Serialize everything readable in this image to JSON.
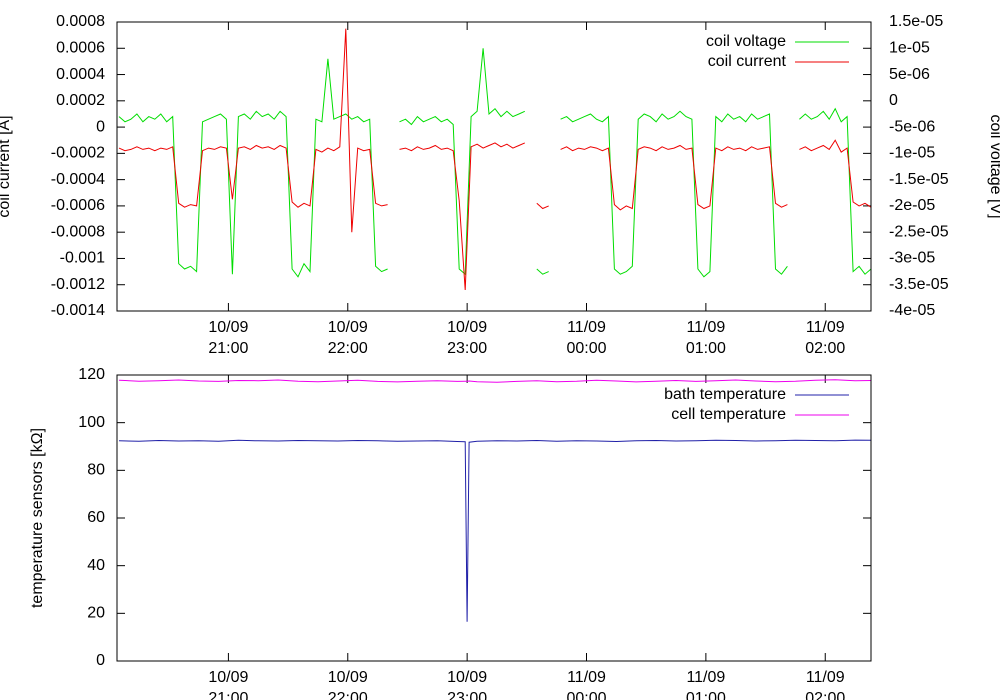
{
  "chart_data": [
    {
      "type": "line",
      "y_label": "coil current [A]",
      "y2_label": "coil voltage [V]",
      "legend": "upper right",
      "x": [
        "10/09 20:05",
        "10/09 20:08",
        "10/09 20:11",
        "10/09 20:14",
        "10/09 20:17",
        "10/09 20:20",
        "10/09 20:23",
        "10/09 20:26",
        "10/09 20:29",
        "10/09 20:32",
        "10/09 20:35",
        "10/09 20:38",
        "10/09 20:41",
        "10/09 20:44",
        "10/09 20:47",
        "10/09 20:50",
        "10/09 20:53",
        "10/09 20:56",
        "10/09 20:59",
        "10/09 21:02",
        "10/09 21:05",
        "10/09 21:08",
        "10/09 21:11",
        "10/09 21:14",
        "10/09 21:17",
        "10/09 21:20",
        "10/09 21:23",
        "10/09 21:26",
        "10/09 21:29",
        "10/09 21:32",
        "10/09 21:35",
        "10/09 21:38",
        "10/09 21:41",
        "10/09 21:44",
        "10/09 21:47",
        "10/09 21:50",
        "10/09 21:53",
        "10/09 21:56",
        "10/09 21:59",
        "10/09 22:02",
        "10/09 22:05",
        "10/09 22:08",
        "10/09 22:11",
        "10/09 22:14",
        "10/09 22:17",
        "10/09 22:20",
        "10/09 22:23",
        "10/09 22:26",
        "10/09 22:29",
        "10/09 22:32",
        "10/09 22:35",
        "10/09 22:38",
        "10/09 22:41",
        "10/09 22:44",
        "10/09 22:47",
        "10/09 22:50",
        "10/09 22:53",
        "10/09 22:56",
        "10/09 22:59",
        "10/09 23:02",
        "10/09 23:05",
        "10/09 23:08",
        "10/09 23:11",
        "10/09 23:14",
        "10/09 23:17",
        "10/09 23:20",
        "10/09 23:23",
        "10/09 23:26",
        "10/09 23:29",
        "10/09 23:32",
        "10/09 23:35",
        "10/09 23:38",
        "10/09 23:41",
        "10/09 23:44",
        "10/09 23:47",
        "10/09 23:50",
        "10/09 23:53",
        "10/09 23:56",
        "10/09 23:59",
        "11/09 00:02",
        "11/09 00:05",
        "11/09 00:08",
        "11/09 00:11",
        "11/09 00:14",
        "11/09 00:17",
        "11/09 00:20",
        "11/09 00:23",
        "11/09 00:26",
        "11/09 00:29",
        "11/09 00:32",
        "11/09 00:35",
        "11/09 00:38",
        "11/09 00:41",
        "11/09 00:44",
        "11/09 00:47",
        "11/09 00:50",
        "11/09 00:53",
        "11/09 00:56",
        "11/09 00:59",
        "11/09 01:02",
        "11/09 01:05",
        "11/09 01:08",
        "11/09 01:11",
        "11/09 01:14",
        "11/09 01:17",
        "11/09 01:20",
        "11/09 01:23",
        "11/09 01:26",
        "11/09 01:29",
        "11/09 01:32",
        "11/09 01:35",
        "11/09 01:38",
        "11/09 01:41",
        "11/09 01:44",
        "11/09 01:47",
        "11/09 01:50",
        "11/09 01:53",
        "11/09 01:56",
        "11/09 01:59",
        "11/09 02:02",
        "11/09 02:05",
        "11/09 02:08",
        "11/09 02:11",
        "11/09 02:14",
        "11/09 02:17",
        "11/09 02:20",
        "11/09 02:23"
      ],
      "xlim": [
        "10/09 20:04",
        "11/09 02:23"
      ],
      "xticks": [
        {
          "value": "10/09 21:00",
          "label": [
            "10/09",
            "21:00"
          ]
        },
        {
          "value": "10/09 22:00",
          "label": [
            "10/09",
            "22:00"
          ]
        },
        {
          "value": "10/09 23:00",
          "label": [
            "10/09",
            "23:00"
          ]
        },
        {
          "value": "11/09 00:00",
          "label": [
            "11/09",
            "00:00"
          ]
        },
        {
          "value": "11/09 01:00",
          "label": [
            "11/09",
            "01:00"
          ]
        },
        {
          "value": "11/09 02:00",
          "label": [
            "11/09",
            "02:00"
          ]
        }
      ],
      "ylim": [
        -0.0014,
        0.0008
      ],
      "yticks": [
        -0.0014,
        -0.0012,
        -0.001,
        -0.0008,
        -0.0006,
        -0.0004,
        -0.0002,
        0,
        0.0002,
        0.0004,
        0.0006,
        0.0008
      ],
      "y2lim": [
        -4e-05,
        1.5e-05
      ],
      "y2ticks": [
        {
          "value": -4e-05,
          "label": "-4e-05"
        },
        {
          "value": -3.5e-05,
          "label": "-3.5e-05"
        },
        {
          "value": -3e-05,
          "label": "-3e-05"
        },
        {
          "value": -2.5e-05,
          "label": "-2.5e-05"
        },
        {
          "value": -2e-05,
          "label": "-2e-05"
        },
        {
          "value": -1.5e-05,
          "label": "-1.5e-05"
        },
        {
          "value": -1e-05,
          "label": "-1e-05"
        },
        {
          "value": -5e-06,
          "label": "-5e-06"
        },
        0,
        {
          "value": 5e-06,
          "label": "5e-06"
        },
        {
          "value": 1e-05,
          "label": "1e-05"
        },
        {
          "value": 1.5e-05,
          "label": "1.5e-05"
        }
      ],
      "series": [
        {
          "name": "coil voltage",
          "color": "#00dd00",
          "axis": "y2",
          "values": [
            -3e-06,
            -4e-06,
            -3.5e-06,
            -2.5e-06,
            -4e-06,
            -3e-06,
            -3.5e-06,
            -2.5e-06,
            -4e-06,
            -3e-06,
            -3.1e-05,
            -3.2e-05,
            -3.15e-05,
            -3.25e-05,
            -4e-06,
            -3.5e-06,
            -3e-06,
            -2.5e-06,
            -3.5e-06,
            -3.3e-05,
            -3e-06,
            -2.5e-06,
            -3.5e-06,
            -2e-06,
            -3e-06,
            -2.5e-06,
            -3.5e-06,
            -2e-06,
            -3e-06,
            -3.2e-05,
            -3.35e-05,
            -3.1e-05,
            -3.25e-05,
            -3.5e-06,
            -4e-06,
            8e-06,
            -3.5e-06,
            -3e-06,
            -2.5e-06,
            -3.5e-06,
            -3e-06,
            -4e-06,
            -3.5e-06,
            -3.15e-05,
            -3.25e-05,
            -3.2e-05,
            null,
            -4e-06,
            -3.5e-06,
            -4.5e-06,
            -3e-06,
            -4e-06,
            -3.5e-06,
            -3e-06,
            -4e-06,
            -3.5e-06,
            -4.5e-06,
            -3.2e-05,
            -3.3e-05,
            -3e-06,
            -2e-06,
            1e-05,
            -2.5e-06,
            -1.5e-06,
            -3e-06,
            -2e-06,
            -3e-06,
            -2.5e-06,
            -2e-06,
            null,
            -3.2e-05,
            -3.3e-05,
            -3.25e-05,
            null,
            -3.5e-06,
            -3e-06,
            -4e-06,
            -3.5e-06,
            -3e-06,
            -2.5e-06,
            -3.5e-06,
            -4e-06,
            -3e-06,
            -3.2e-05,
            -3.3e-05,
            -3.25e-05,
            -3.15e-05,
            -3.5e-06,
            -2.5e-06,
            -3e-06,
            -4e-06,
            -2.5e-06,
            -3.5e-06,
            -3e-06,
            -2e-06,
            -3e-06,
            -3.5e-06,
            -3.2e-05,
            -3.35e-05,
            -3.25e-05,
            -3e-06,
            -4e-06,
            -2.5e-06,
            -3.5e-06,
            -3e-06,
            -4e-06,
            -2.5e-06,
            -3.5e-06,
            -3e-06,
            -2.5e-06,
            -3.2e-05,
            -3.3e-05,
            -3.15e-05,
            null,
            -3.5e-06,
            -2.5e-06,
            -3.5e-06,
            -3e-06,
            -2e-06,
            -3.5e-06,
            -1.5e-06,
            -4e-06,
            -3e-06,
            -3.25e-05,
            -3.15e-05,
            -3.3e-05,
            -3.2e-05
          ]
        },
        {
          "name": "coil current",
          "color": "#ee0000",
          "values": [
            -0.00016,
            -0.00018,
            -0.00017,
            -0.00015,
            -0.00017,
            -0.00016,
            -0.00018,
            -0.00016,
            -0.00017,
            -0.00015,
            -0.00058,
            -0.00061,
            -0.00059,
            -0.0006,
            -0.00018,
            -0.00016,
            -0.00017,
            -0.00015,
            -0.00016,
            -0.00055,
            -0.00016,
            -0.00015,
            -0.00017,
            -0.00014,
            -0.00016,
            -0.00015,
            -0.00017,
            -0.00014,
            -0.00016,
            -0.00057,
            -0.00061,
            -0.00058,
            -0.0006,
            -0.00017,
            -0.00019,
            -0.00016,
            -0.00018,
            -0.00015,
            0.00075,
            -0.0008,
            -0.00016,
            -0.00018,
            -0.00017,
            -0.00058,
            -0.0006,
            -0.00059,
            null,
            -0.00017,
            -0.00016,
            -0.00018,
            -0.00015,
            -0.00017,
            -0.00016,
            -0.00014,
            -0.00017,
            -0.00016,
            -0.00018,
            -0.00056,
            -0.00124,
            -0.00015,
            -0.00013,
            -0.00016,
            -0.00014,
            -0.00012,
            -0.00015,
            -0.00013,
            -0.00016,
            -0.00014,
            -0.00012,
            null,
            -0.00058,
            -0.00062,
            -0.0006,
            null,
            -0.00017,
            -0.00015,
            -0.00018,
            -0.00016,
            -0.00017,
            -0.00015,
            -0.00016,
            -0.00018,
            -0.00016,
            -0.00059,
            -0.00063,
            -0.0006,
            -0.00062,
            -0.00017,
            -0.00015,
            -0.00016,
            -0.00018,
            -0.00015,
            -0.00017,
            -0.00016,
            -0.00014,
            -0.00017,
            -0.00016,
            -0.00059,
            -0.00062,
            -0.0006,
            -0.00016,
            -0.00018,
            -0.00015,
            -0.00017,
            -0.00016,
            -0.00018,
            -0.00015,
            -0.00017,
            -0.00016,
            -0.00015,
            -0.00058,
            -0.00061,
            -0.00059,
            null,
            -0.00017,
            -0.00015,
            -0.00018,
            -0.00016,
            -0.00014,
            -0.00017,
            -0.0001,
            -0.00019,
            -0.00016,
            -0.00057,
            -0.0006,
            -0.00058,
            -0.00061
          ]
        }
      ]
    },
    {
      "type": "line",
      "y_label": "temperature sensors [kΩ]",
      "legend": "upper right",
      "x": [
        "10/09 20:05",
        "10/09 20:15",
        "10/09 20:25",
        "10/09 20:35",
        "10/09 20:45",
        "10/09 20:55",
        "10/09 21:05",
        "10/09 21:15",
        "10/09 21:25",
        "10/09 21:35",
        "10/09 21:45",
        "10/09 21:55",
        "10/09 22:05",
        "10/09 22:15",
        "10/09 22:25",
        "10/09 22:35",
        "10/09 22:45",
        "10/09 22:55",
        "10/09 22:59",
        "10/09 23:00",
        "10/09 23:01",
        "10/09 23:05",
        "10/09 23:15",
        "10/09 23:25",
        "10/09 23:35",
        "10/09 23:45",
        "10/09 23:55",
        "11/09 00:05",
        "11/09 00:15",
        "11/09 00:25",
        "11/09 00:35",
        "11/09 00:45",
        "11/09 00:55",
        "11/09 01:05",
        "11/09 01:15",
        "11/09 01:25",
        "11/09 01:35",
        "11/09 01:45",
        "11/09 01:55",
        "11/09 02:05",
        "11/09 02:15",
        "11/09 02:23"
      ],
      "xlim": [
        "10/09 20:04",
        "11/09 02:23"
      ],
      "xticks": [
        {
          "value": "10/09 21:00",
          "label": [
            "10/09",
            "21:00"
          ]
        },
        {
          "value": "10/09 22:00",
          "label": [
            "10/09",
            "22:00"
          ]
        },
        {
          "value": "10/09 23:00",
          "label": [
            "10/09",
            "23:00"
          ]
        },
        {
          "value": "11/09 00:00",
          "label": [
            "11/09",
            "00:00"
          ]
        },
        {
          "value": "11/09 01:00",
          "label": [
            "11/09",
            "01:00"
          ]
        },
        {
          "value": "11/09 02:00",
          "label": [
            "11/09",
            "02:00"
          ]
        }
      ],
      "ylim": [
        0,
        120
      ],
      "yticks": [
        0,
        20,
        40,
        60,
        80,
        100,
        120
      ],
      "series": [
        {
          "name": "bath temperature",
          "color": "#2020a8",
          "values": [
            92.4,
            92.2,
            92.5,
            92.3,
            92.4,
            92.2,
            92.6,
            92.4,
            92.3,
            92.5,
            92.4,
            92.3,
            92.5,
            92.4,
            92.2,
            92.3,
            92.4,
            92.1,
            92.0,
            16.5,
            91.8,
            92.2,
            92.4,
            92.3,
            92.5,
            92.2,
            92.4,
            92.3,
            92.1,
            92.4,
            92.5,
            92.3,
            92.4,
            92.6,
            92.5,
            92.3,
            92.4,
            92.6,
            92.5,
            92.4,
            92.7,
            92.6
          ]
        },
        {
          "name": "cell temperature",
          "color": "#ee00ee",
          "values": [
            117.8,
            117.4,
            117.6,
            117.9,
            117.5,
            117.3,
            117.7,
            117.6,
            117.9,
            117.4,
            117.2,
            117.5,
            117.8,
            117.3,
            117.1,
            117.4,
            117.6,
            117.3,
            117.4,
            117.4,
            117.5,
            117.2,
            117.0,
            117.3,
            117.6,
            117.2,
            117.4,
            117.8,
            117.5,
            117.1,
            117.4,
            117.7,
            117.3,
            117.6,
            117.9,
            117.5,
            117.2,
            117.4,
            117.8,
            118.0,
            117.6,
            117.7
          ]
        }
      ]
    }
  ]
}
